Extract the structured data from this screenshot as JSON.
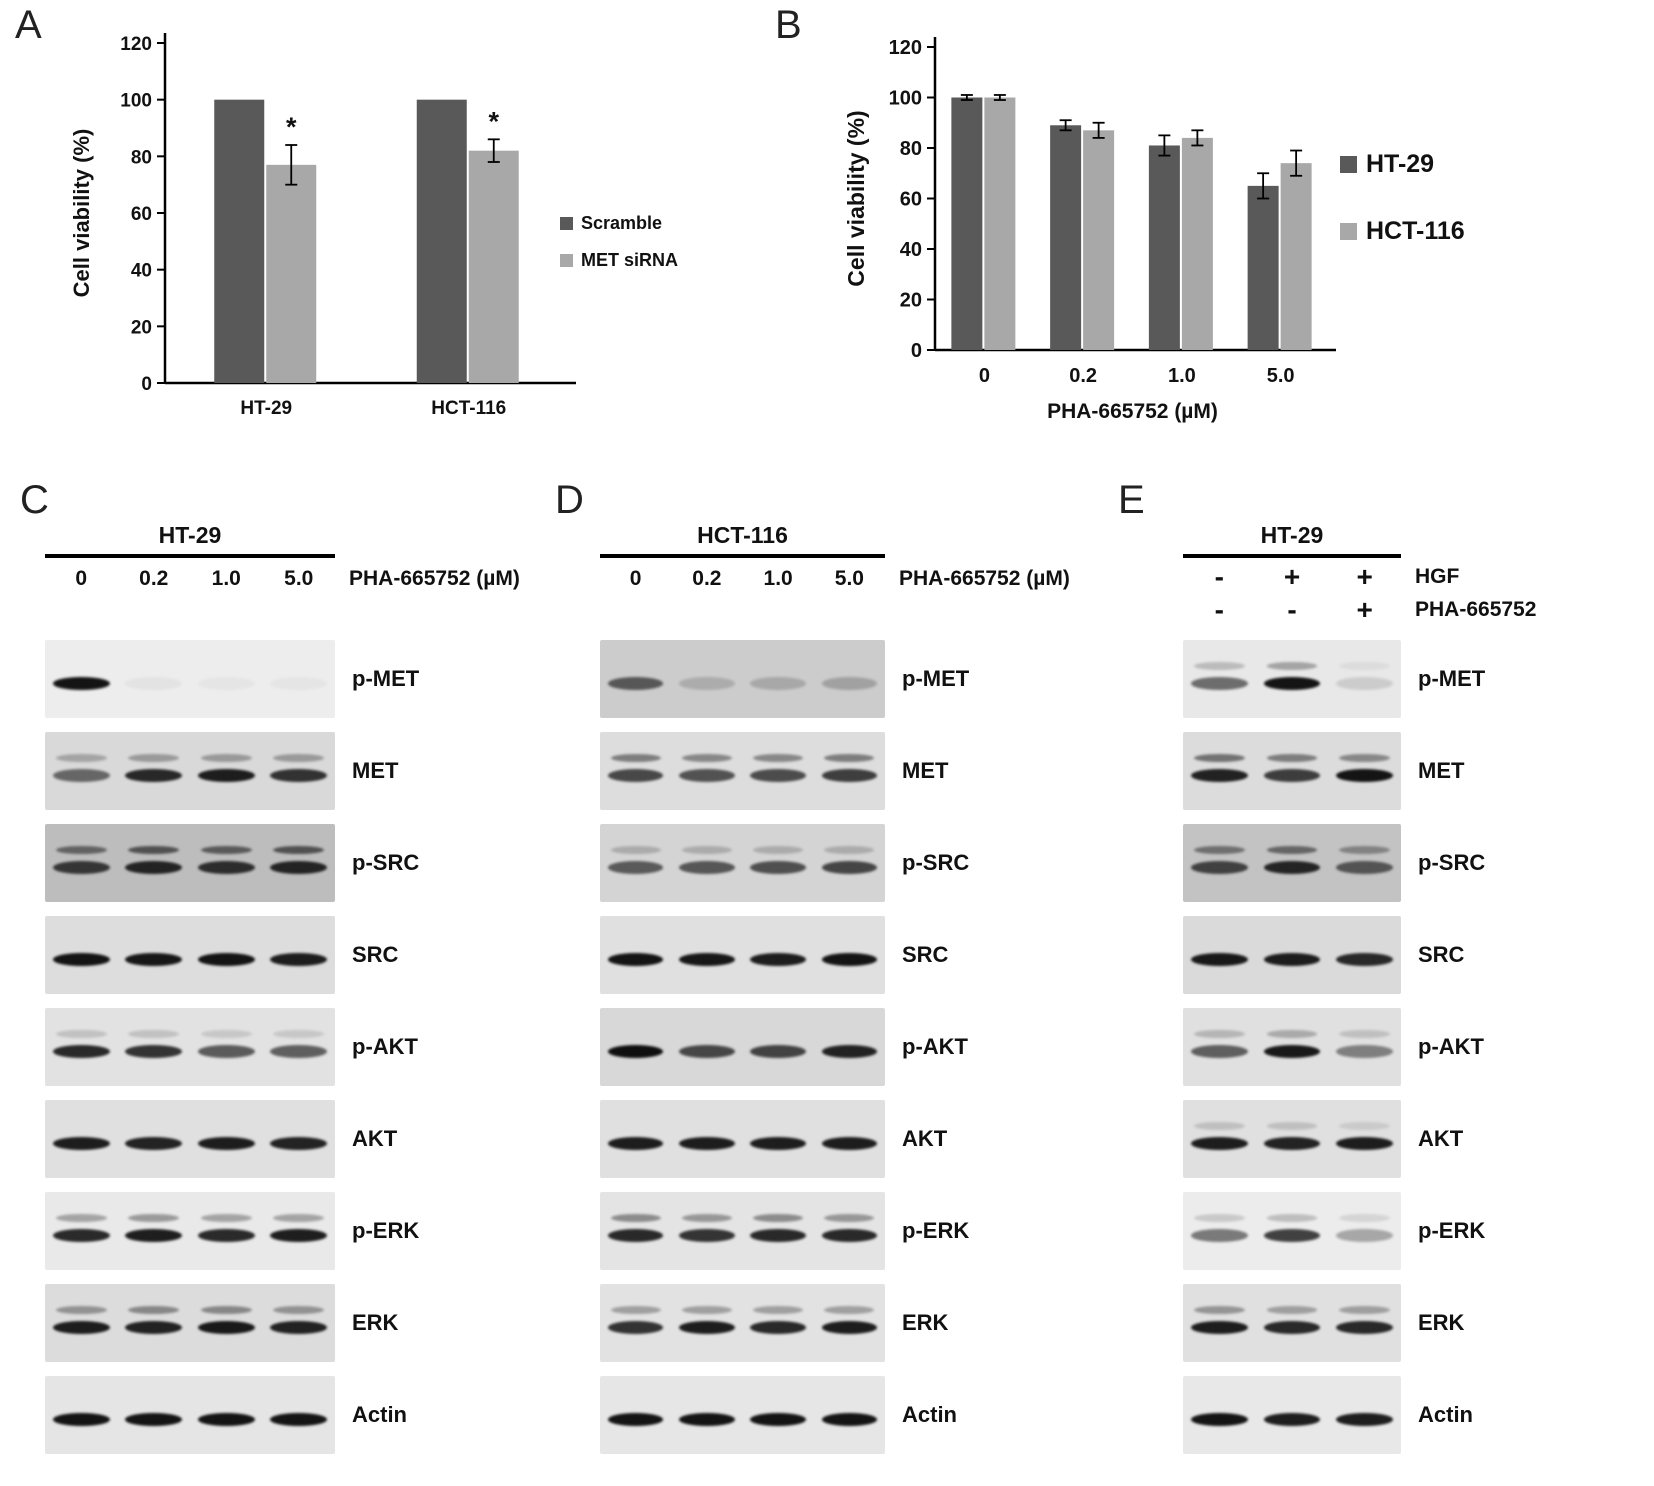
{
  "panels": {
    "A": {
      "label": "A"
    },
    "B": {
      "label": "B"
    },
    "C": {
      "label": "C"
    },
    "D": {
      "label": "D"
    },
    "E": {
      "label": "E"
    }
  },
  "colors": {
    "series_dark": "#595959",
    "series_light": "#a8a8a8",
    "axis": "#000000"
  },
  "chart_data": [
    {
      "panel": "A",
      "type": "bar",
      "title": "",
      "ylabel": "Cell viability (%)",
      "xlabel": "",
      "ylim": [
        0,
        120
      ],
      "yticks": [
        0,
        20,
        40,
        60,
        80,
        100,
        120
      ],
      "categories": [
        "HT-29",
        "HCT-116"
      ],
      "series": [
        {
          "name": "Scramble",
          "color": "#595959",
          "values": [
            100,
            100
          ],
          "errors": [
            0,
            0
          ]
        },
        {
          "name": "MET siRNA",
          "color": "#a8a8a8",
          "values": [
            77,
            82
          ],
          "errors": [
            7,
            4
          ],
          "annotations": [
            "*",
            "*"
          ]
        }
      ],
      "grid": false,
      "legend_position": "right"
    },
    {
      "panel": "B",
      "type": "bar",
      "title": "",
      "ylabel": "Cell viability (%)",
      "xlabel": "PHA-665752 (µM)",
      "ylim": [
        0,
        120
      ],
      "yticks": [
        0,
        20,
        40,
        60,
        80,
        100,
        120
      ],
      "categories": [
        "0",
        "0.2",
        "1.0",
        "5.0"
      ],
      "series": [
        {
          "name": "HT-29",
          "color": "#595959",
          "values": [
            100,
            89,
            81,
            65
          ],
          "errors": [
            1,
            2,
            4,
            5
          ]
        },
        {
          "name": "HCT-116",
          "color": "#a8a8a8",
          "values": [
            100,
            87,
            84,
            74
          ],
          "errors": [
            1,
            3,
            3,
            5
          ]
        }
      ],
      "grid": false,
      "legend_position": "right"
    }
  ],
  "blot_panels": [
    {
      "panel": "C",
      "title": "HT-29",
      "lane_labels": [
        "0",
        "0.2",
        "1.0",
        "5.0"
      ],
      "lane_unit": "PHA-665752 (µM)",
      "condition_rows": [],
      "rows": [
        {
          "label": "p-MET",
          "bg": "#ededed",
          "lanes": [
            0.95,
            0.04,
            0.03,
            0.03
          ],
          "upper": [
            0,
            0,
            0,
            0
          ]
        },
        {
          "label": "MET",
          "bg": "#d9d9d9",
          "lanes": [
            0.55,
            0.85,
            0.9,
            0.8
          ],
          "upper": [
            0.25,
            0.3,
            0.3,
            0.3
          ]
        },
        {
          "label": "p-SRC",
          "bg": "#bdbdbd",
          "lanes": [
            0.75,
            0.85,
            0.8,
            0.85
          ],
          "upper": [
            0.5,
            0.6,
            0.55,
            0.6
          ]
        },
        {
          "label": "SRC",
          "bg": "#dddddd",
          "lanes": [
            0.95,
            0.93,
            0.95,
            0.9
          ],
          "upper": [
            0,
            0,
            0,
            0
          ]
        },
        {
          "label": "p-AKT",
          "bg": "#e2e2e2",
          "lanes": [
            0.85,
            0.8,
            0.62,
            0.6
          ],
          "upper": [
            0.15,
            0.15,
            0.12,
            0.12
          ]
        },
        {
          "label": "AKT",
          "bg": "#e0e0e0",
          "lanes": [
            0.9,
            0.88,
            0.9,
            0.88
          ],
          "upper": [
            0,
            0,
            0,
            0
          ]
        },
        {
          "label": "p-ERK",
          "bg": "#e9e9e9",
          "lanes": [
            0.85,
            0.9,
            0.85,
            0.9
          ],
          "upper": [
            0.3,
            0.35,
            0.3,
            0.3
          ]
        },
        {
          "label": "ERK",
          "bg": "#dcdcdc",
          "lanes": [
            0.9,
            0.88,
            0.92,
            0.88
          ],
          "upper": [
            0.35,
            0.4,
            0.4,
            0.35
          ]
        },
        {
          "label": "Actin",
          "bg": "#e5e5e5",
          "lanes": [
            0.95,
            0.95,
            0.95,
            0.95
          ],
          "upper": [
            0,
            0,
            0,
            0
          ]
        }
      ]
    },
    {
      "panel": "D",
      "title": "HCT-116",
      "lane_labels": [
        "0",
        "0.2",
        "1.0",
        "5.0"
      ],
      "lane_unit": "PHA-665752 (µM)",
      "condition_rows": [],
      "rows": [
        {
          "label": "p-MET",
          "bg": "#cccccc",
          "lanes": [
            0.6,
            0.16,
            0.18,
            0.22
          ],
          "upper": [
            0,
            0,
            0,
            0
          ]
        },
        {
          "label": "MET",
          "bg": "#dddddd",
          "lanes": [
            0.7,
            0.65,
            0.68,
            0.75
          ],
          "upper": [
            0.45,
            0.4,
            0.4,
            0.45
          ]
        },
        {
          "label": "p-SRC",
          "bg": "#d4d4d4",
          "lanes": [
            0.6,
            0.62,
            0.65,
            0.7
          ],
          "upper": [
            0.2,
            0.2,
            0.2,
            0.2
          ]
        },
        {
          "label": "SRC",
          "bg": "#e0e0e0",
          "lanes": [
            0.95,
            0.93,
            0.9,
            0.95
          ],
          "upper": [
            0,
            0,
            0,
            0
          ]
        },
        {
          "label": "p-AKT",
          "bg": "#d8d8d8",
          "lanes": [
            0.97,
            0.7,
            0.72,
            0.88
          ],
          "upper": [
            0,
            0,
            0,
            0
          ]
        },
        {
          "label": "AKT",
          "bg": "#e0e0e0",
          "lanes": [
            0.9,
            0.9,
            0.9,
            0.9
          ],
          "upper": [
            0,
            0,
            0,
            0
          ]
        },
        {
          "label": "p-ERK",
          "bg": "#e4e4e4",
          "lanes": [
            0.85,
            0.8,
            0.85,
            0.85
          ],
          "upper": [
            0.4,
            0.35,
            0.4,
            0.35
          ]
        },
        {
          "label": "ERK",
          "bg": "#e2e2e2",
          "lanes": [
            0.8,
            0.9,
            0.85,
            0.9
          ],
          "upper": [
            0.3,
            0.3,
            0.3,
            0.3
          ]
        },
        {
          "label": "Actin",
          "bg": "#e6e6e6",
          "lanes": [
            0.95,
            0.95,
            0.95,
            0.95
          ],
          "upper": [
            0,
            0,
            0,
            0
          ]
        }
      ]
    },
    {
      "panel": "E",
      "title": "HT-29",
      "lane_labels": [],
      "lane_unit": "",
      "condition_rows": [
        {
          "signs": [
            "-",
            "+",
            "+"
          ],
          "label": "HGF"
        },
        {
          "signs": [
            "-",
            "-",
            "+"
          ],
          "label": "PHA-665752"
        }
      ],
      "rows": [
        {
          "label": "p-MET",
          "bg": "#e8e8e8",
          "lanes": [
            0.55,
            0.95,
            0.12
          ],
          "upper": [
            0.2,
            0.3,
            0.05
          ]
        },
        {
          "label": "MET",
          "bg": "#dcdcdc",
          "lanes": [
            0.88,
            0.75,
            0.95
          ],
          "upper": [
            0.5,
            0.45,
            0.4
          ]
        },
        {
          "label": "p-SRC",
          "bg": "#c3c3c3",
          "lanes": [
            0.7,
            0.85,
            0.6
          ],
          "upper": [
            0.45,
            0.5,
            0.35
          ]
        },
        {
          "label": "SRC",
          "bg": "#dadada",
          "lanes": [
            0.92,
            0.9,
            0.85
          ],
          "upper": [
            0,
            0,
            0
          ]
        },
        {
          "label": "p-AKT",
          "bg": "#e0e0e0",
          "lanes": [
            0.6,
            0.92,
            0.45
          ],
          "upper": [
            0.2,
            0.25,
            0.15
          ]
        },
        {
          "label": "AKT",
          "bg": "#e0e0e0",
          "lanes": [
            0.9,
            0.88,
            0.9
          ],
          "upper": [
            0.15,
            0.15,
            0.1
          ]
        },
        {
          "label": "p-ERK",
          "bg": "#ececec",
          "lanes": [
            0.5,
            0.75,
            0.3
          ],
          "upper": [
            0.15,
            0.2,
            0.1
          ]
        },
        {
          "label": "ERK",
          "bg": "#e0e0e0",
          "lanes": [
            0.9,
            0.85,
            0.85
          ],
          "upper": [
            0.35,
            0.3,
            0.3
          ]
        },
        {
          "label": "Actin",
          "bg": "#e8e8e8",
          "lanes": [
            0.95,
            0.9,
            0.9
          ],
          "upper": [
            0,
            0,
            0
          ]
        }
      ]
    }
  ]
}
